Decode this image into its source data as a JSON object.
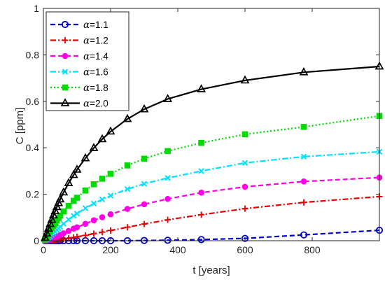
{
  "chart_data": {
    "type": "line",
    "title": "",
    "xlabel": "t [years]",
    "ylabel": "C [ppm]",
    "xlim": [
      0,
      1000
    ],
    "ylim": [
      0,
      1
    ],
    "xticks": [
      0,
      200,
      400,
      600,
      800
    ],
    "yticks": [
      0,
      0.2,
      0.4,
      0.6,
      0.8,
      1
    ],
    "xtick_labels": [
      "0",
      "200",
      "400",
      "600",
      "800"
    ],
    "ytick_labels": [
      "0",
      "0.2",
      "0.4",
      "0.6",
      "0.8",
      "1"
    ],
    "grid": false,
    "legend_position": "top-left",
    "series": [
      {
        "name": "α=1.1",
        "label_prefix": "α",
        "label_value": "=1.1",
        "color": "#0000c8",
        "dash": "dashed",
        "marker": "circle-open",
        "x": [
          5,
          10,
          15,
          20,
          25,
          30,
          35,
          40,
          45,
          50,
          60,
          75,
          90,
          100,
          125,
          150,
          175,
          200,
          250,
          300,
          370,
          470,
          600,
          775,
          1000
        ],
        "y": [
          0,
          0,
          0,
          0,
          0,
          0,
          0,
          0,
          0,
          0,
          0,
          0,
          0,
          0,
          0,
          0,
          0,
          0,
          0,
          0.001,
          0.002,
          0.005,
          0.01,
          0.025,
          0.045
        ]
      },
      {
        "name": "α=1.2",
        "label_prefix": "α",
        "label_value": "=1.2",
        "color": "#e60000",
        "dash": "dashdot",
        "marker": "plus",
        "x": [
          5,
          10,
          15,
          20,
          25,
          30,
          35,
          40,
          45,
          50,
          60,
          75,
          90,
          100,
          125,
          150,
          175,
          200,
          250,
          300,
          370,
          470,
          600,
          775,
          1000
        ],
        "y": [
          0,
          0,
          0,
          0,
          0.001,
          0.001,
          0.002,
          0.003,
          0.004,
          0.005,
          0.007,
          0.01,
          0.014,
          0.017,
          0.023,
          0.03,
          0.037,
          0.044,
          0.058,
          0.072,
          0.09,
          0.112,
          0.138,
          0.165,
          0.19
        ]
      },
      {
        "name": "α=1.4",
        "label_prefix": "α",
        "label_value": "=1.4",
        "color": "#ff00e6",
        "dash": "dashed",
        "marker": "circle-filled",
        "x": [
          5,
          10,
          15,
          20,
          25,
          30,
          35,
          40,
          45,
          50,
          60,
          75,
          90,
          100,
          125,
          150,
          175,
          200,
          250,
          300,
          370,
          470,
          600,
          775,
          1000
        ],
        "y": [
          0,
          0.001,
          0.003,
          0.005,
          0.008,
          0.011,
          0.014,
          0.018,
          0.021,
          0.025,
          0.032,
          0.042,
          0.052,
          0.058,
          0.073,
          0.088,
          0.101,
          0.114,
          0.137,
          0.157,
          0.18,
          0.207,
          0.232,
          0.255,
          0.272
        ]
      },
      {
        "name": "α=1.6",
        "label_prefix": "α",
        "label_value": "=1.6",
        "color": "#00e0ff",
        "dash": "dashdot",
        "marker": "x",
        "x": [
          5,
          10,
          15,
          20,
          25,
          30,
          35,
          40,
          45,
          50,
          60,
          75,
          90,
          100,
          125,
          150,
          175,
          200,
          250,
          300,
          370,
          470,
          600,
          775,
          1000
        ],
        "y": [
          0.002,
          0.006,
          0.012,
          0.018,
          0.025,
          0.032,
          0.039,
          0.046,
          0.053,
          0.06,
          0.073,
          0.091,
          0.107,
          0.117,
          0.14,
          0.16,
          0.178,
          0.194,
          0.222,
          0.245,
          0.27,
          0.3,
          0.335,
          0.362,
          0.383
        ]
      },
      {
        "name": "α=1.8",
        "label_prefix": "α",
        "label_value": "=1.8",
        "color": "#00dc00",
        "dash": "dotted",
        "marker": "square",
        "x": [
          5,
          10,
          15,
          20,
          25,
          30,
          35,
          40,
          45,
          50,
          60,
          75,
          90,
          100,
          125,
          150,
          175,
          200,
          250,
          300,
          370,
          470,
          600,
          775,
          1000
        ],
        "y": [
          0.005,
          0.015,
          0.028,
          0.041,
          0.053,
          0.065,
          0.076,
          0.087,
          0.098,
          0.108,
          0.126,
          0.15,
          0.172,
          0.185,
          0.216,
          0.243,
          0.267,
          0.288,
          0.324,
          0.353,
          0.386,
          0.421,
          0.458,
          0.49,
          0.537
        ]
      },
      {
        "name": "α=2.0",
        "label_prefix": "α",
        "label_value": "=2.0",
        "color": "#000000",
        "dash": "solid",
        "marker": "triangle",
        "x": [
          5,
          10,
          15,
          20,
          25,
          30,
          35,
          40,
          45,
          50,
          60,
          75,
          90,
          100,
          125,
          150,
          175,
          200,
          250,
          300,
          370,
          470,
          600,
          775,
          1000
        ],
        "y": [
          0.012,
          0.031,
          0.052,
          0.072,
          0.09,
          0.109,
          0.127,
          0.145,
          0.162,
          0.178,
          0.208,
          0.248,
          0.283,
          0.306,
          0.355,
          0.399,
          0.437,
          0.47,
          0.524,
          0.566,
          0.61,
          0.652,
          0.69,
          0.725,
          0.75
        ]
      }
    ]
  }
}
